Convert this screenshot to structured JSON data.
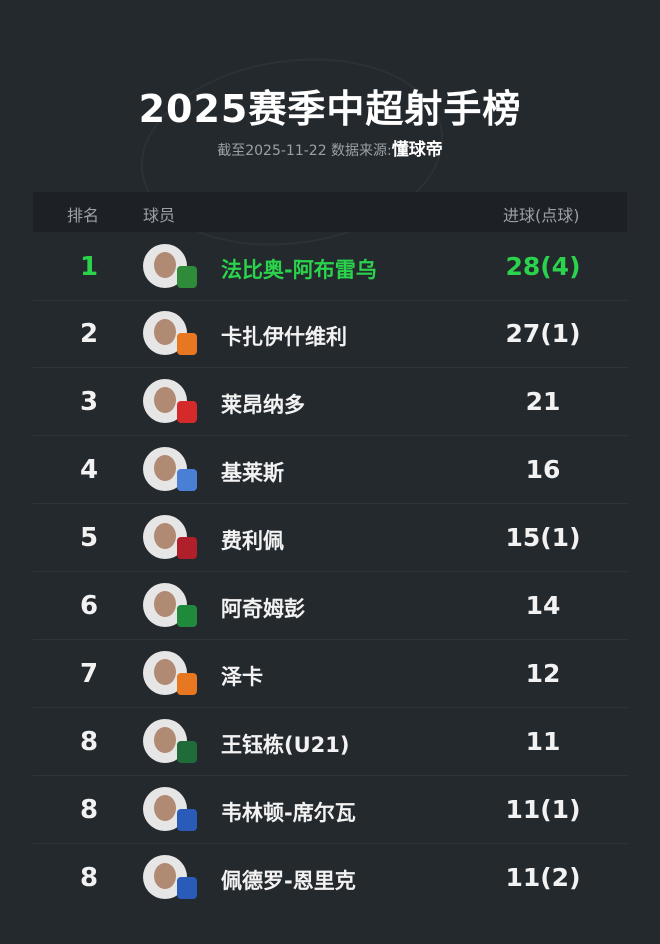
{
  "title": "2025赛季中超射手榜",
  "subtitle": {
    "prefix": "截至2025-11-22 数据来源:",
    "source": "懂球帝"
  },
  "header": {
    "rank": "排名",
    "player": "球员",
    "goals": "进球(点球)"
  },
  "colors": {
    "highlight": "#2bd24b",
    "background": "#24292e"
  },
  "rows": [
    {
      "rank": "1",
      "name": "法比奥-阿布雷乌",
      "goals": "28(4)",
      "badge": "#2e8b3a"
    },
    {
      "rank": "2",
      "name": "卡扎伊什维利",
      "goals": "27(1)",
      "badge": "#e87722"
    },
    {
      "rank": "3",
      "name": "莱昂纳多",
      "goals": "21",
      "badge": "#d42a2a"
    },
    {
      "rank": "4",
      "name": "基莱斯",
      "goals": "16",
      "badge": "#4a7fd6"
    },
    {
      "rank": "5",
      "name": "费利佩",
      "goals": "15(1)",
      "badge": "#b0202a"
    },
    {
      "rank": "6",
      "name": "阿奇姆彭",
      "goals": "14",
      "badge": "#1f8a3c"
    },
    {
      "rank": "7",
      "name": "泽卡",
      "goals": "12",
      "badge": "#e87722"
    },
    {
      "rank": "8",
      "name": "王钰栋(U21)",
      "goals": "11",
      "badge": "#1f6b3a"
    },
    {
      "rank": "8",
      "name": "韦林顿-席尔瓦",
      "goals": "11(1)",
      "badge": "#2a5bb8"
    },
    {
      "rank": "8",
      "name": "佩德罗-恩里克",
      "goals": "11(2)",
      "badge": "#2a5bb8"
    }
  ]
}
